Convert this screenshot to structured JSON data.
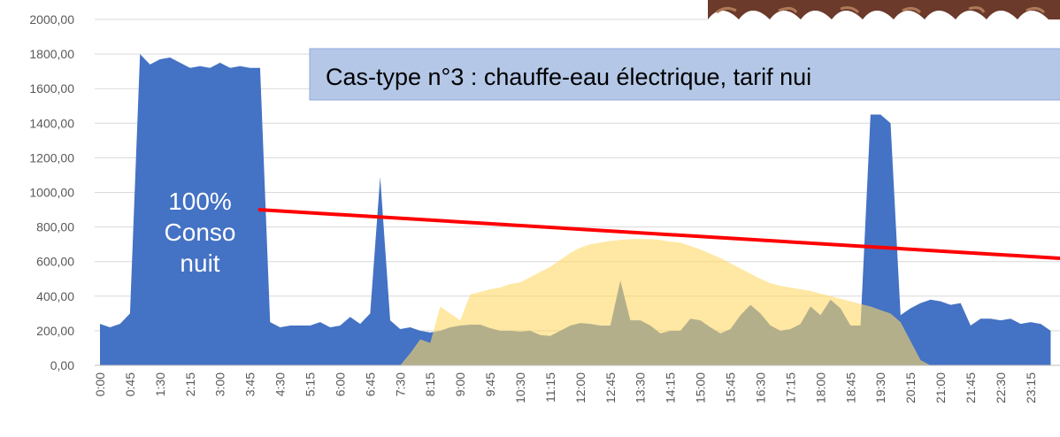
{
  "chart_data": {
    "type": "area",
    "annotations": [
      "Cas-type n°3 : chauffe-eau électrique, tarif nui",
      "100%",
      "Conso",
      "nuit"
    ],
    "categories": [
      "0:00",
      null,
      null,
      "0:45",
      null,
      null,
      "1:30",
      null,
      null,
      "2:15",
      null,
      null,
      "3:00",
      null,
      null,
      "3:45",
      null,
      null,
      "4:30",
      null,
      null,
      "5:15",
      null,
      null,
      "6:00",
      null,
      null,
      "6:45",
      null,
      null,
      "7:30",
      null,
      null,
      "8:15",
      null,
      null,
      "9:00",
      null,
      null,
      "9:45",
      null,
      null,
      "10:30",
      null,
      null,
      "11:15",
      null,
      null,
      "12:00",
      null,
      null,
      "12:45",
      null,
      null,
      "13:30",
      null,
      null,
      "14:15",
      null,
      null,
      "15:00",
      null,
      null,
      "15:45",
      null,
      null,
      "16:30",
      null,
      null,
      "17:15",
      null,
      null,
      "18:00",
      null,
      null,
      "18:45",
      null,
      null,
      "19:30",
      null,
      null,
      "20:15",
      null,
      null,
      "21:00",
      null,
      null,
      "21:45",
      null,
      null,
      "22:30",
      null,
      null,
      "23:15",
      null,
      null
    ],
    "series": [
      {
        "color": "#4472c4",
        "values": [
          240,
          220,
          240,
          300,
          1800,
          1740,
          1770,
          1780,
          1750,
          1720,
          1730,
          1720,
          1750,
          1720,
          1730,
          1720,
          1720,
          250,
          220,
          230,
          230,
          230,
          250,
          220,
          230,
          280,
          240,
          300,
          1090,
          260,
          210,
          220,
          200,
          190,
          200,
          220,
          230,
          235,
          235,
          215,
          200,
          200,
          195,
          200,
          175,
          170,
          200,
          230,
          245,
          240,
          230,
          230,
          490,
          260,
          260,
          230,
          185,
          200,
          200,
          270,
          260,
          220,
          185,
          210,
          290,
          350,
          300,
          230,
          200,
          210,
          240,
          340,
          290,
          380,
          330,
          230,
          230,
          1450,
          1450,
          1400,
          290,
          330,
          360,
          380,
          370,
          350,
          360,
          230,
          270,
          270,
          260,
          270,
          240,
          250,
          240,
          200
        ]
      },
      {
        "color": "#ffd966",
        "values": [
          0,
          0,
          0,
          0,
          0,
          0,
          0,
          0,
          0,
          0,
          0,
          0,
          0,
          0,
          0,
          0,
          0,
          0,
          0,
          0,
          0,
          0,
          0,
          0,
          0,
          0,
          0,
          0,
          0,
          0,
          0,
          70,
          150,
          130,
          340,
          300,
          260,
          410,
          425,
          440,
          450,
          470,
          480,
          510,
          540,
          570,
          610,
          650,
          680,
          700,
          710,
          720,
          725,
          730,
          730,
          730,
          725,
          715,
          710,
          690,
          670,
          645,
          620,
          590,
          560,
          530,
          500,
          475,
          460,
          450,
          440,
          430,
          415,
          400,
          385,
          370,
          355,
          340,
          320,
          300,
          250,
          140,
          30,
          0,
          0,
          0,
          0,
          0,
          0,
          0,
          0,
          0,
          0,
          0,
          0,
          0
        ]
      }
    ],
    "ylim": [
      0,
      2000
    ],
    "yticks": [
      {
        "value": 0,
        "label": "0,00"
      },
      {
        "value": 200,
        "label": "200,00"
      },
      {
        "value": 400,
        "label": "400,00"
      },
      {
        "value": 600,
        "label": "600,00"
      },
      {
        "value": 800,
        "label": "800,00"
      },
      {
        "value": 1000,
        "label": "1000,00"
      },
      {
        "value": 1200,
        "label": "1200,00"
      },
      {
        "value": 1400,
        "label": "1400,00"
      },
      {
        "value": 1600,
        "label": "1600,00"
      },
      {
        "value": 1800,
        "label": "1800,00"
      },
      {
        "value": 2000,
        "label": "2000,00"
      }
    ],
    "grid": true
  }
}
